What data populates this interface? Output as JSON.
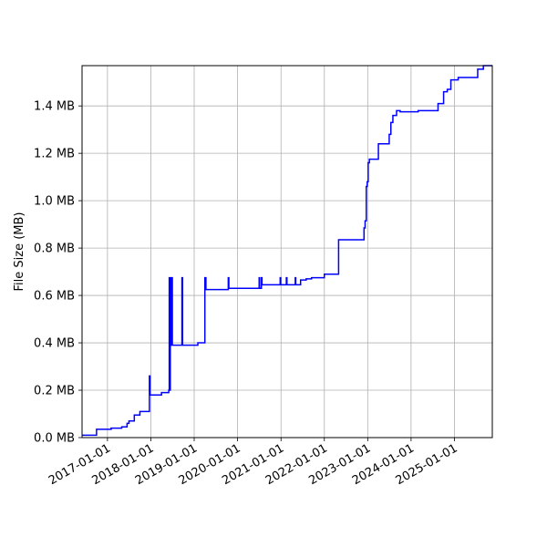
{
  "chart_data": {
    "type": "line",
    "title": "",
    "xlabel": "",
    "ylabel": "File Size (MB)",
    "xlim": [
      "2016-06-01",
      "2025-11-15"
    ],
    "ylim": [
      0,
      1.57
    ],
    "grid": true,
    "line_color": "#0000ff",
    "x_ticks": [
      "2017-01-01",
      "2018-01-01",
      "2019-01-01",
      "2020-01-01",
      "2021-01-01",
      "2022-01-01",
      "2023-01-01",
      "2024-01-01",
      "2025-01-01"
    ],
    "y_ticks": [
      0.0,
      0.2,
      0.4,
      0.6,
      0.8,
      1.0,
      1.2,
      1.4
    ],
    "y_tick_labels": [
      "0.0 MB",
      "0.2 MB",
      "0.4 MB",
      "0.6 MB",
      "0.8 MB",
      "1.0 MB",
      "1.2 MB",
      "1.4 MB"
    ],
    "series": [
      {
        "points": [
          [
            "2016-06-01",
            0.01
          ],
          [
            "2016-10-01",
            0.01
          ],
          [
            "2016-10-01",
            0.035
          ],
          [
            "2017-02-01",
            0.035
          ],
          [
            "2017-02-01",
            0.04
          ],
          [
            "2017-05-01",
            0.04
          ],
          [
            "2017-05-01",
            0.045
          ],
          [
            "2017-06-15",
            0.045
          ],
          [
            "2017-06-15",
            0.06
          ],
          [
            "2017-07-01",
            0.06
          ],
          [
            "2017-07-01",
            0.07
          ],
          [
            "2017-08-15",
            0.07
          ],
          [
            "2017-08-15",
            0.095
          ],
          [
            "2017-10-01",
            0.095
          ],
          [
            "2017-10-01",
            0.11
          ],
          [
            "2017-12-20",
            0.11
          ],
          [
            "2017-12-20",
            0.26
          ],
          [
            "2017-12-25",
            0.26
          ],
          [
            "2017-12-25",
            0.18
          ],
          [
            "2018-04-01",
            0.18
          ],
          [
            "2018-04-01",
            0.19
          ],
          [
            "2018-06-01",
            0.19
          ],
          [
            "2018-06-01",
            0.2
          ],
          [
            "2018-06-05",
            0.2
          ],
          [
            "2018-06-05",
            0.675
          ],
          [
            "2018-06-10",
            0.675
          ],
          [
            "2018-06-10",
            0.2
          ],
          [
            "2018-06-14",
            0.2
          ],
          [
            "2018-06-14",
            0.675
          ],
          [
            "2018-06-20",
            0.675
          ],
          [
            "2018-06-20",
            0.39
          ],
          [
            "2018-06-25",
            0.39
          ],
          [
            "2018-06-25",
            0.675
          ],
          [
            "2018-07-01",
            0.675
          ],
          [
            "2018-07-01",
            0.39
          ],
          [
            "2018-09-20",
            0.39
          ],
          [
            "2018-09-20",
            0.675
          ],
          [
            "2018-09-25",
            0.675
          ],
          [
            "2018-09-25",
            0.39
          ],
          [
            "2019-02-01",
            0.39
          ],
          [
            "2019-02-01",
            0.4
          ],
          [
            "2019-04-01",
            0.4
          ],
          [
            "2019-04-01",
            0.675
          ],
          [
            "2019-04-10",
            0.675
          ],
          [
            "2019-04-10",
            0.625
          ],
          [
            "2019-10-15",
            0.625
          ],
          [
            "2019-10-15",
            0.675
          ],
          [
            "2019-10-20",
            0.675
          ],
          [
            "2019-10-20",
            0.63
          ],
          [
            "2020-07-01",
            0.63
          ],
          [
            "2020-07-01",
            0.675
          ],
          [
            "2020-07-05",
            0.675
          ],
          [
            "2020-07-05",
            0.63
          ],
          [
            "2020-07-20",
            0.63
          ],
          [
            "2020-07-20",
            0.675
          ],
          [
            "2020-07-25",
            0.675
          ],
          [
            "2020-07-25",
            0.645
          ],
          [
            "2020-12-25",
            0.645
          ],
          [
            "2020-12-25",
            0.675
          ],
          [
            "2020-12-30",
            0.675
          ],
          [
            "2020-12-30",
            0.645
          ],
          [
            "2021-02-15",
            0.645
          ],
          [
            "2021-02-15",
            0.675
          ],
          [
            "2021-02-20",
            0.675
          ],
          [
            "2021-02-20",
            0.645
          ],
          [
            "2021-05-01",
            0.645
          ],
          [
            "2021-05-01",
            0.675
          ],
          [
            "2021-05-05",
            0.675
          ],
          [
            "2021-05-05",
            0.645
          ],
          [
            "2021-06-15",
            0.645
          ],
          [
            "2021-06-15",
            0.665
          ],
          [
            "2021-08-01",
            0.665
          ],
          [
            "2021-08-01",
            0.67
          ],
          [
            "2021-09-15",
            0.67
          ],
          [
            "2021-09-15",
            0.675
          ],
          [
            "2022-01-01",
            0.675
          ],
          [
            "2022-01-01",
            0.69
          ],
          [
            "2022-05-01",
            0.69
          ],
          [
            "2022-05-01",
            0.835
          ],
          [
            "2022-12-01",
            0.835
          ],
          [
            "2022-12-01",
            0.885
          ],
          [
            "2022-12-10",
            0.885
          ],
          [
            "2022-12-10",
            0.915
          ],
          [
            "2022-12-20",
            0.915
          ],
          [
            "2022-12-20",
            1.06
          ],
          [
            "2022-12-28",
            1.06
          ],
          [
            "2022-12-28",
            1.08
          ],
          [
            "2023-01-05",
            1.08
          ],
          [
            "2023-01-05",
            1.16
          ],
          [
            "2023-01-15",
            1.16
          ],
          [
            "2023-01-15",
            1.175
          ],
          [
            "2023-04-01",
            1.175
          ],
          [
            "2023-04-01",
            1.24
          ],
          [
            "2023-07-01",
            1.24
          ],
          [
            "2023-07-01",
            1.28
          ],
          [
            "2023-07-15",
            1.28
          ],
          [
            "2023-07-15",
            1.33
          ],
          [
            "2023-08-01",
            1.33
          ],
          [
            "2023-08-01",
            1.36
          ],
          [
            "2023-09-01",
            1.36
          ],
          [
            "2023-09-01",
            1.38
          ],
          [
            "2023-10-01",
            1.38
          ],
          [
            "2023-10-01",
            1.375
          ],
          [
            "2024-03-01",
            1.375
          ],
          [
            "2024-03-01",
            1.38
          ],
          [
            "2024-08-15",
            1.38
          ],
          [
            "2024-08-15",
            1.41
          ],
          [
            "2024-10-01",
            1.41
          ],
          [
            "2024-10-01",
            1.46
          ],
          [
            "2024-11-01",
            1.46
          ],
          [
            "2024-11-01",
            1.47
          ],
          [
            "2024-12-01",
            1.47
          ],
          [
            "2024-12-01",
            1.51
          ],
          [
            "2025-02-01",
            1.51
          ],
          [
            "2025-02-01",
            1.52
          ],
          [
            "2025-07-15",
            1.52
          ],
          [
            "2025-07-15",
            1.555
          ],
          [
            "2025-09-01",
            1.555
          ],
          [
            "2025-09-01",
            1.57
          ],
          [
            "2025-11-15",
            1.57
          ]
        ]
      }
    ]
  }
}
